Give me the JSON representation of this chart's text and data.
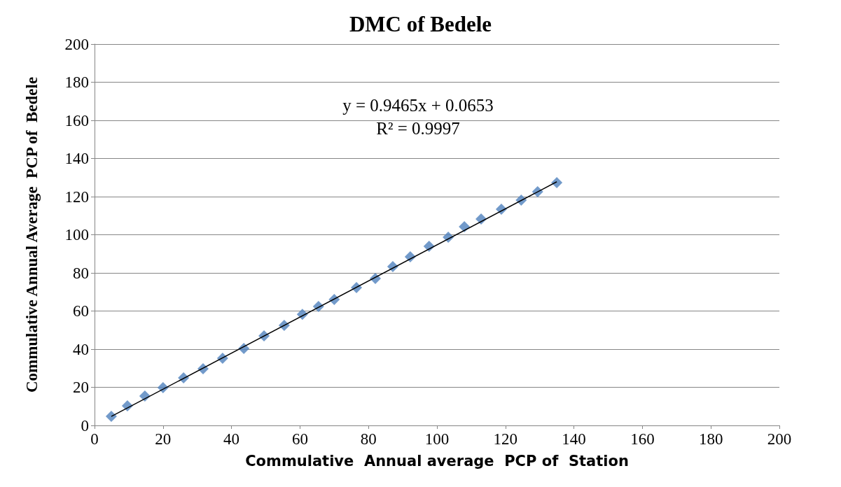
{
  "chart_data": {
    "type": "scatter",
    "title": "DMC of Bedele",
    "xlabel": "Commulative  Annual average  PCP of  Station",
    "ylabel": "Commulative Annual Average  PCP of  Bedele",
    "series": [
      {
        "type": "scatter",
        "color": "#4f81bd",
        "marker": "diamond",
        "x": [
          4.9,
          9.6,
          14.7,
          20.0,
          26.0,
          31.7,
          37.4,
          43.6,
          49.5,
          55.4,
          60.7,
          65.4,
          70.0,
          76.5,
          82.0,
          87.1,
          92.2,
          97.7,
          103.3,
          108.0,
          112.9,
          118.8,
          124.6,
          129.4,
          135.0
        ],
        "values": [
          4.8,
          10.3,
          15.4,
          19.8,
          25.0,
          29.7,
          35.2,
          40.4,
          47.0,
          52.5,
          58.3,
          62.4,
          66.1,
          72.3,
          77.1,
          83.3,
          88.4,
          93.9,
          98.7,
          104.2,
          108.3,
          113.4,
          118.2,
          122.6,
          127.3
        ]
      },
      {
        "type": "line",
        "color": "#000000",
        "marker": "none",
        "line_style": "solid",
        "x": [
          4.9,
          135.0
        ],
        "values": [
          4.7,
          127.8
        ]
      }
    ],
    "annotations": [
      "y = 0.9465x + 0.0653",
      "R² = 0.9997"
    ],
    "xlim": [
      0,
      200
    ],
    "xticks": [
      0,
      20,
      40,
      60,
      80,
      100,
      120,
      140,
      160,
      180,
      200
    ],
    "ylim": [
      0,
      200
    ],
    "yticks": [
      0,
      20,
      40,
      60,
      80,
      100,
      120,
      140,
      160,
      180,
      200
    ],
    "grid": "y"
  }
}
